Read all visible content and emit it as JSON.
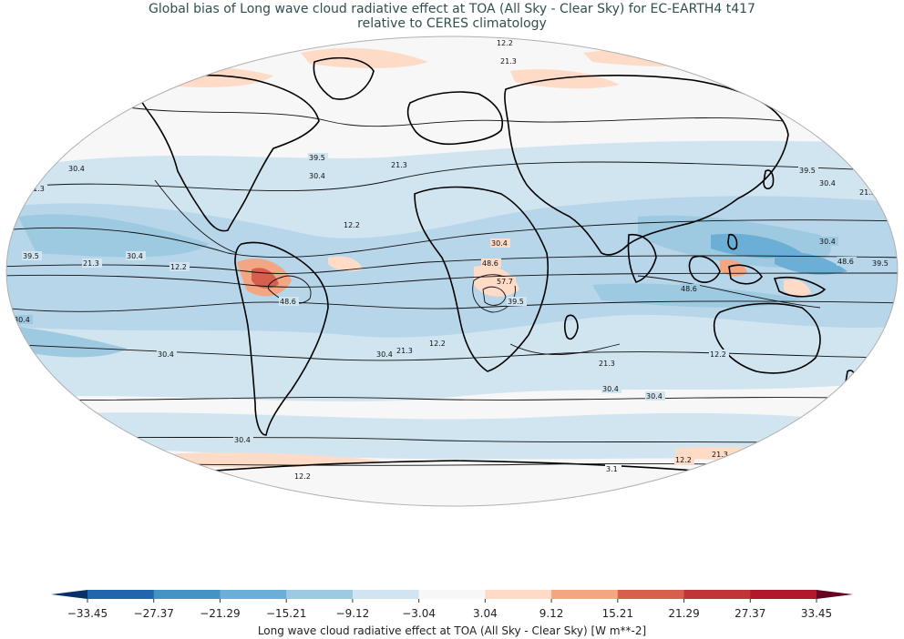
{
  "title": {
    "line1": "Global bias of Long wave cloud radiative effect at TOA (All Sky - Clear Sky) for EC-EARTH4 t417",
    "line2": "relative to CERES climatology"
  },
  "colorbar": {
    "label": "Long wave cloud radiative effect at TOA (All Sky - Clear Sky) [W m**-2]",
    "ticks": [
      "−33.45",
      "−27.37",
      "−21.29",
      "−15.21",
      "−9.12",
      "−3.04",
      "3.04",
      "9.12",
      "15.21",
      "21.29",
      "27.37",
      "33.45"
    ],
    "colors": [
      "#08306b",
      "#2166ac",
      "#4393c3",
      "#6baed6",
      "#9ecae1",
      "#d1e5f0",
      "#f7f7f7",
      "#fddbc7",
      "#f4a582",
      "#d6604d",
      "#c03537",
      "#b2182b",
      "#67001f"
    ]
  },
  "contour_labels": [
    "12.2",
    "21.3",
    "30.4",
    "39.5",
    "48.6",
    "57.7",
    "3.1"
  ]
}
